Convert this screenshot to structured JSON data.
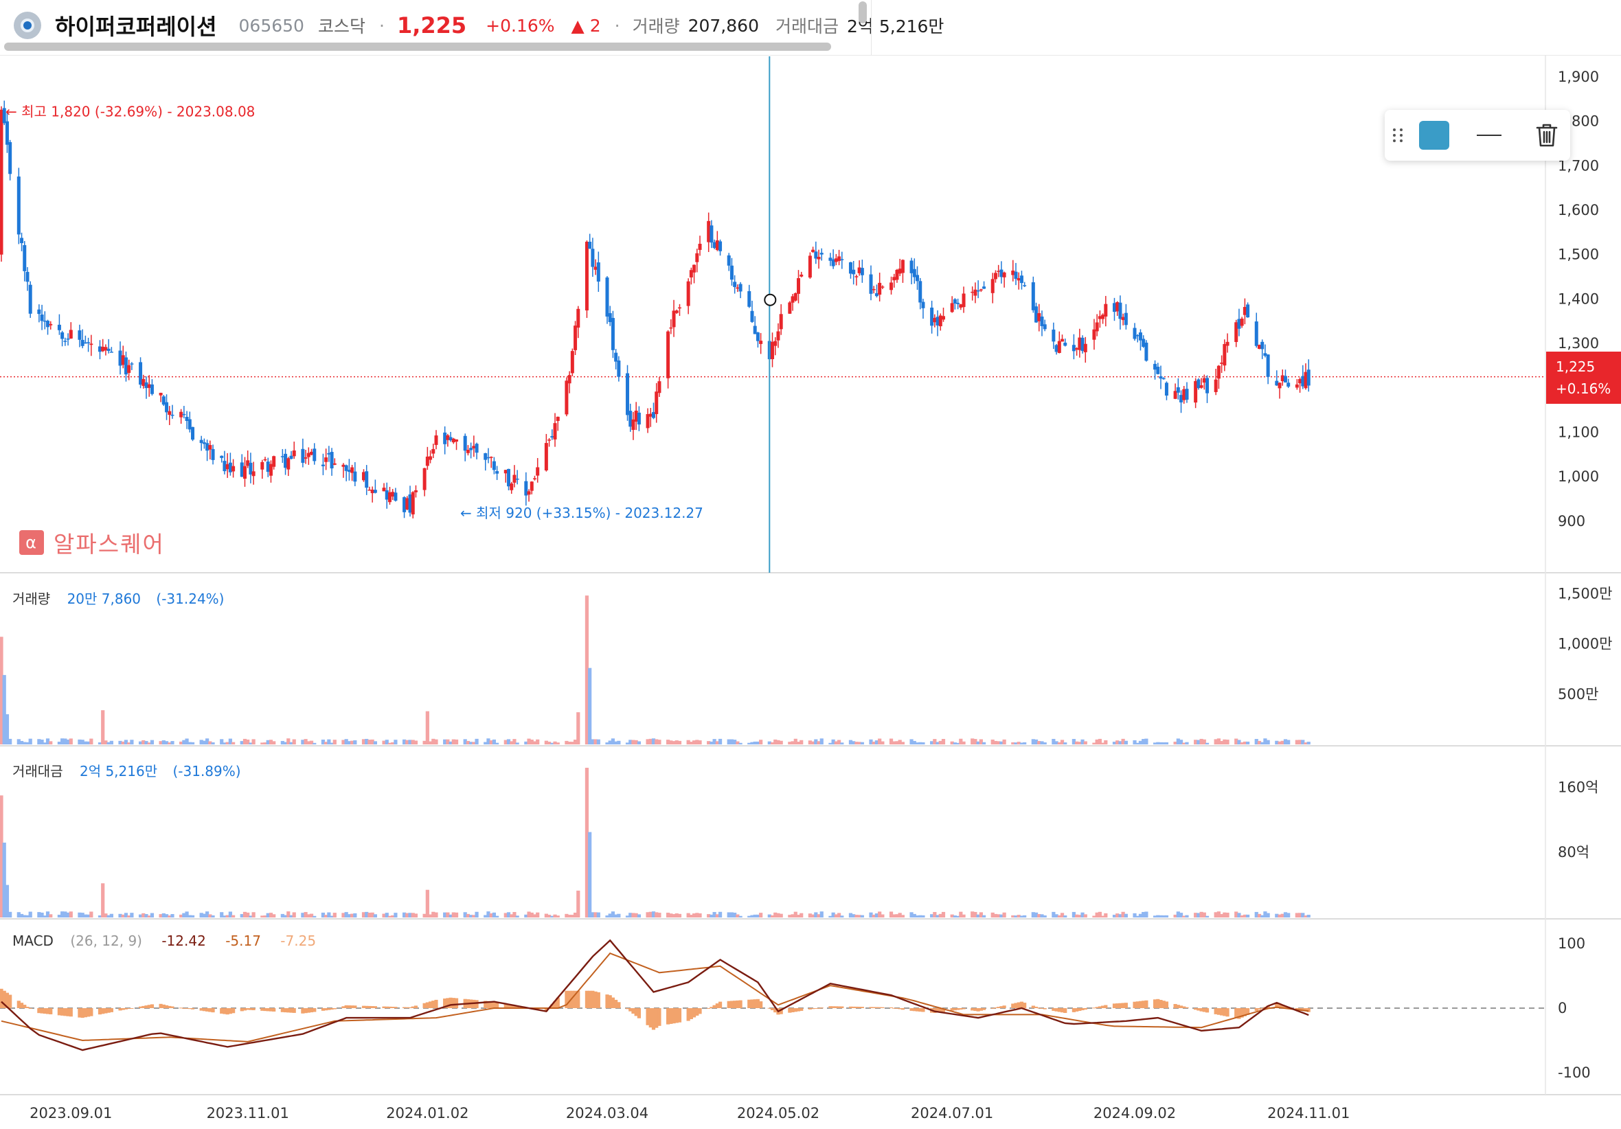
{
  "header": {
    "name": "하이퍼코퍼레이션",
    "code": "065650",
    "market": "코스닥",
    "separator": "·",
    "price": "1,225",
    "change_pct": "+0.16%",
    "change": "▲ 2",
    "volume_label": "거래량",
    "volume_value": "207,860",
    "amount_label": "거래대금",
    "amount_value": "2억 5,216만"
  },
  "toolbox": {
    "color": "#3a9cc7",
    "icons": [
      "drag-handle-icon",
      "color-swatch",
      "line-style-icon",
      "trash-icon"
    ]
  },
  "watermark": {
    "icon": "α",
    "text": "알파스퀘어"
  },
  "price_tag": {
    "price": "1,225",
    "pct": "+0.16%"
  },
  "annotations": {
    "high": "← 최고 1,820 (-32.69%) - 2023.08.08",
    "low": "← 최저 920 (+33.15%) - 2023.12.27"
  },
  "legends": {
    "volume": {
      "title": "거래량",
      "value": "20만 7,860",
      "pct": "(-31.24%)"
    },
    "amount": {
      "title": "거래대금",
      "value": "2억 5,216만",
      "pct": "(-31.89%)"
    },
    "macd": {
      "title": "MACD",
      "params": "(26, 12, 9)",
      "macd": "-12.42",
      "signal": "-5.17",
      "hist": "-7.25"
    }
  },
  "colors": {
    "up": "#e8262b",
    "down": "#1e78d8",
    "vol_up": "#f4a3a3",
    "vol_down": "#8fb6f2",
    "macd_line": "#7a1c10",
    "signal_line": "#c2601e",
    "hist": "#f2a36c",
    "crosshair": "#3a9cc7"
  },
  "chart_data": [
    {
      "type": "candlestick",
      "title": "",
      "x_ticks": [
        "2023.09.01",
        "2023.11.01",
        "2024.01.02",
        "2024.03.04",
        "2024.05.02",
        "2024.07.01",
        "2024.09.02",
        "2024.11.01"
      ],
      "y_ticks": [
        "1,900",
        "1,800",
        "1,700",
        "1,600",
        "1,500",
        "1,400",
        "1,300",
        "1,200",
        "1,100",
        "1,000",
        "900"
      ],
      "y_values": [
        1900,
        1800,
        1700,
        1600,
        1500,
        1400,
        1300,
        1200,
        1100,
        1000,
        900
      ],
      "ylim": [
        800,
        1920
      ],
      "current": 1225,
      "high": {
        "value": 1820,
        "date": "2023.08.08"
      },
      "low": {
        "value": 920,
        "date": "2023.12.27"
      },
      "keypoints": [
        {
          "d": "2023.08.08",
          "c": 1820
        },
        {
          "d": "2023.08.18",
          "c": 1380
        },
        {
          "d": "2023.08.31",
          "c": 1320
        },
        {
          "d": "2023.09.20",
          "c": 1250
        },
        {
          "d": "2023.09.28",
          "c": 1200
        },
        {
          "d": "2023.10.10",
          "c": 1120
        },
        {
          "d": "2023.10.25",
          "c": 1010
        },
        {
          "d": "2023.11.10",
          "c": 1030
        },
        {
          "d": "2023.11.25",
          "c": 1050
        },
        {
          "d": "2023.12.10",
          "c": 1000
        },
        {
          "d": "2023.12.27",
          "c": 930
        },
        {
          "d": "2024.01.05",
          "c": 1080
        },
        {
          "d": "2024.01.20",
          "c": 1060
        },
        {
          "d": "2024.02.05",
          "c": 960
        },
        {
          "d": "2024.02.18",
          "c": 1150
        },
        {
          "d": "2024.02.26",
          "c": 1520
        },
        {
          "d": "2024.03.04",
          "c": 1380
        },
        {
          "d": "2024.03.10",
          "c": 1120
        },
        {
          "d": "2024.03.20",
          "c": 1150
        },
        {
          "d": "2024.03.25",
          "c": 1330
        },
        {
          "d": "2024.04.08",
          "c": 1560
        },
        {
          "d": "2024.04.20",
          "c": 1400
        },
        {
          "d": "2024.04.28",
          "c": 1260
        },
        {
          "d": "2024.05.05",
          "c": 1400
        },
        {
          "d": "2024.05.15",
          "c": 1510
        },
        {
          "d": "2024.05.25",
          "c": 1480
        },
        {
          "d": "2024.06.05",
          "c": 1420
        },
        {
          "d": "2024.06.15",
          "c": 1480
        },
        {
          "d": "2024.06.25",
          "c": 1340
        },
        {
          "d": "2024.07.10",
          "c": 1420
        },
        {
          "d": "2024.07.22",
          "c": 1470
        },
        {
          "d": "2024.08.05",
          "c": 1290
        },
        {
          "d": "2024.08.15",
          "c": 1300
        },
        {
          "d": "2024.08.25",
          "c": 1400
        },
        {
          "d": "2024.09.05",
          "c": 1280
        },
        {
          "d": "2024.09.15",
          "c": 1180
        },
        {
          "d": "2024.09.28",
          "c": 1210
        },
        {
          "d": "2024.10.10",
          "c": 1380
        },
        {
          "d": "2024.10.20",
          "c": 1210
        },
        {
          "d": "2024.11.02",
          "c": 1225
        }
      ]
    },
    {
      "type": "bar",
      "title": "거래량",
      "y_ticks": [
        "1,500만",
        "1,000만",
        "500만"
      ],
      "y_values": [
        1500,
        1000,
        500
      ],
      "ylim": [
        0,
        1580
      ],
      "units": "만",
      "spikes": [
        {
          "d": "2023.08.08",
          "v": 1070
        },
        {
          "d": "2023.08.09",
          "v": 690
        },
        {
          "d": "2023.08.10",
          "v": 300
        },
        {
          "d": "2023.09.12",
          "v": 340
        },
        {
          "d": "2024.01.02",
          "v": 330
        },
        {
          "d": "2024.02.23",
          "v": 320
        },
        {
          "d": "2024.02.26",
          "v": 1480
        },
        {
          "d": "2024.02.27",
          "v": 760
        }
      ],
      "last": 20.786
    },
    {
      "type": "bar",
      "title": "거래대금",
      "y_ticks": [
        "160억",
        "80억"
      ],
      "y_values": [
        160,
        80
      ],
      "ylim": [
        0,
        195
      ],
      "units": "억",
      "spikes": [
        {
          "d": "2023.08.08",
          "v": 150
        },
        {
          "d": "2023.08.09",
          "v": 92
        },
        {
          "d": "2023.08.10",
          "v": 40
        },
        {
          "d": "2023.09.12",
          "v": 42
        },
        {
          "d": "2024.01.02",
          "v": 34
        },
        {
          "d": "2024.02.23",
          "v": 33
        },
        {
          "d": "2024.02.26",
          "v": 184
        },
        {
          "d": "2024.02.27",
          "v": 105
        }
      ],
      "last": 2.5216
    },
    {
      "type": "line",
      "title": "MACD",
      "y_ticks": [
        "100",
        "0",
        "-100"
      ],
      "y_values": [
        100,
        0,
        -100
      ],
      "ylim": [
        -130,
        130
      ],
      "series": [
        {
          "name": "MACD",
          "keypoints": [
            {
              "d": "2023.08.08",
              "v": 10
            },
            {
              "d": "2023.08.20",
              "v": -40
            },
            {
              "d": "2023.09.05",
              "v": -65
            },
            {
              "d": "2023.10.01",
              "v": -38
            },
            {
              "d": "2023.10.25",
              "v": -60
            },
            {
              "d": "2023.11.20",
              "v": -40
            },
            {
              "d": "2023.12.05",
              "v": -15
            },
            {
              "d": "2023.12.27",
              "v": -15
            },
            {
              "d": "2024.01.10",
              "v": 5
            },
            {
              "d": "2024.01.25",
              "v": 10
            },
            {
              "d": "2024.02.12",
              "v": -5
            },
            {
              "d": "2024.02.28",
              "v": 80
            },
            {
              "d": "2024.03.05",
              "v": 105
            },
            {
              "d": "2024.03.20",
              "v": 25
            },
            {
              "d": "2024.04.01",
              "v": 40
            },
            {
              "d": "2024.04.12",
              "v": 75
            },
            {
              "d": "2024.04.25",
              "v": 40
            },
            {
              "d": "2024.05.02",
              "v": -5
            },
            {
              "d": "2024.05.20",
              "v": 38
            },
            {
              "d": "2024.06.10",
              "v": 20
            },
            {
              "d": "2024.06.25",
              "v": -5
            },
            {
              "d": "2024.07.10",
              "v": -15
            },
            {
              "d": "2024.07.25",
              "v": 0
            },
            {
              "d": "2024.08.10",
              "v": -25
            },
            {
              "d": "2024.08.30",
              "v": -20
            },
            {
              "d": "2024.09.10",
              "v": -15
            },
            {
              "d": "2024.09.25",
              "v": -35
            },
            {
              "d": "2024.10.08",
              "v": -30
            },
            {
              "d": "2024.10.20",
              "v": 10
            },
            {
              "d": "2024.11.02",
              "v": -12.42
            }
          ]
        },
        {
          "name": "Signal",
          "keypoints": [
            {
              "d": "2023.08.08",
              "v": -20
            },
            {
              "d": "2023.09.05",
              "v": -50
            },
            {
              "d": "2023.10.05",
              "v": -45
            },
            {
              "d": "2023.11.01",
              "v": -52
            },
            {
              "d": "2023.12.01",
              "v": -20
            },
            {
              "d": "2024.01.05",
              "v": -15
            },
            {
              "d": "2024.01.25",
              "v": 0
            },
            {
              "d": "2024.02.18",
              "v": 0
            },
            {
              "d": "2024.03.05",
              "v": 85
            },
            {
              "d": "2024.03.22",
              "v": 55
            },
            {
              "d": "2024.04.12",
              "v": 65
            },
            {
              "d": "2024.05.02",
              "v": 5
            },
            {
              "d": "2024.05.20",
              "v": 35
            },
            {
              "d": "2024.06.15",
              "v": 15
            },
            {
              "d": "2024.07.05",
              "v": -10
            },
            {
              "d": "2024.08.01",
              "v": -10
            },
            {
              "d": "2024.08.25",
              "v": -28
            },
            {
              "d": "2024.09.25",
              "v": -30
            },
            {
              "d": "2024.10.20",
              "v": 2
            },
            {
              "d": "2024.11.02",
              "v": -5.17
            }
          ]
        }
      ],
      "histogram": "MACD minus Signal"
    }
  ]
}
